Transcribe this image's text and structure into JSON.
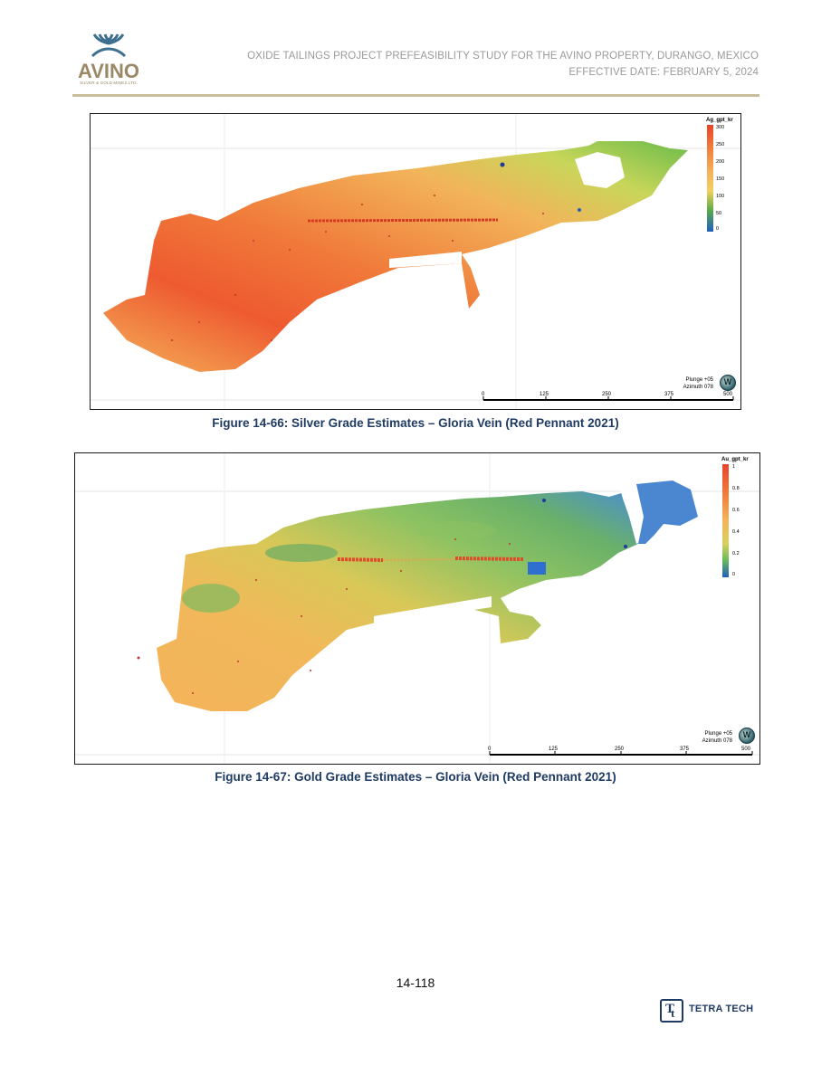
{
  "header": {
    "logo_word": "AVINO",
    "logo_sub": "SILVER & GOLD MINES LTD.",
    "line1": "OXIDE TAILINGS PROJECT PREFEASIBILITY STUDY FOR THE AVINO PROPERTY, DURANGO, MEXICO",
    "line2": "EFFECTIVE DATE: FEBRUARY 5, 2024",
    "rule_color": "#c9bd9c"
  },
  "figures": [
    {
      "caption": "Figure 14-66: Silver Grade Estimates – Gloria Vein (Red Pennant 2021)",
      "legend": {
        "title": "Ag_gpt_kr",
        "ticks": [
          "300",
          "250",
          "200",
          "150",
          "100",
          "50",
          "0"
        ],
        "colors": [
          "#e8432a",
          "#f07a3a",
          "#f4b35a",
          "#f2d060",
          "#c8d65a",
          "#5aaa4a",
          "#1f5fbf"
        ]
      },
      "orientation": {
        "plunge": "Plunge +05",
        "azimuth": "Azimuth 078"
      },
      "compass": "W",
      "scale": [
        "0",
        "125",
        "250",
        "375",
        "500"
      ]
    },
    {
      "caption": "Figure 14-67: Gold Grade Estimates – Gloria Vein (Red Pennant 2021)",
      "legend": {
        "title": "Au_gpt_kr",
        "ticks": [
          "1",
          "0.8",
          "0.6",
          "0.4",
          "0.2",
          "0"
        ],
        "colors": [
          "#e8432a",
          "#f07a3a",
          "#f4b35a",
          "#d8d060",
          "#6aba5a",
          "#1f5fbf"
        ]
      },
      "orientation": {
        "plunge": "Plunge +05",
        "azimuth": "Azimuth 078"
      },
      "compass": "W",
      "scale": [
        "0",
        "125",
        "250",
        "375",
        "500"
      ]
    }
  ],
  "page_number": "14-118",
  "footer_logo_text": "TETRA TECH",
  "brand_color": "#1f3b63"
}
